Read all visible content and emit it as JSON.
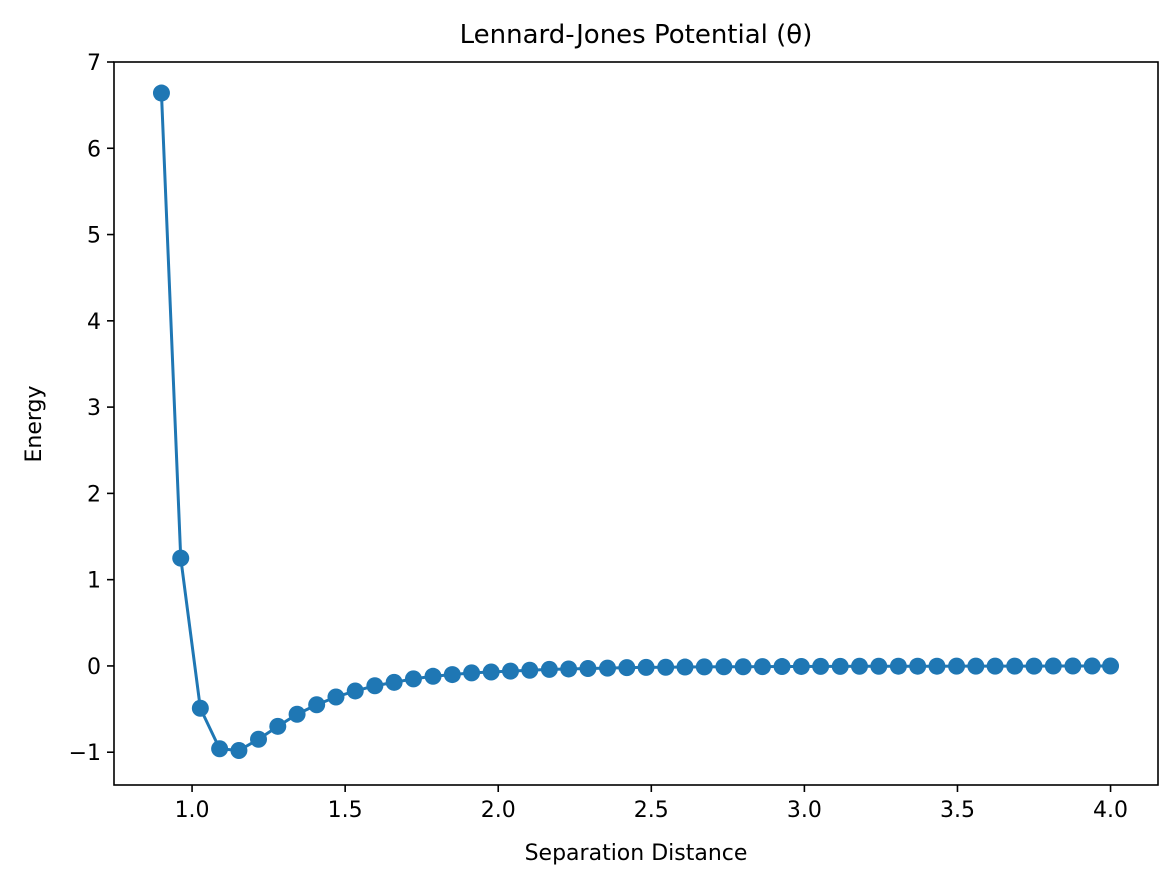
{
  "chart_data": {
    "type": "line",
    "title": "Lennard-Jones Potential (θ)",
    "xlabel": "Separation Distance",
    "ylabel": "Energy",
    "xlim": [
      0.745,
      4.155
    ],
    "ylim": [
      -1.38,
      7.0
    ],
    "xticks": [
      1.0,
      1.5,
      2.0,
      2.5,
      3.0,
      3.5,
      4.0
    ],
    "xtick_labels": [
      "1.0",
      "1.5",
      "2.0",
      "2.5",
      "3.0",
      "3.5",
      "4.0"
    ],
    "yticks": [
      -1,
      0,
      1,
      2,
      3,
      4,
      5,
      6,
      7
    ],
    "ytick_labels": [
      "−1",
      "0",
      "1",
      "2",
      "3",
      "4",
      "5",
      "6",
      "7"
    ],
    "grid": false,
    "markers": "circle",
    "series": [
      {
        "color": "#1f77b4",
        "x": [
          0.9,
          0.963,
          1.027,
          1.09,
          1.153,
          1.217,
          1.28,
          1.343,
          1.407,
          1.47,
          1.533,
          1.597,
          1.66,
          1.723,
          1.787,
          1.85,
          1.913,
          1.977,
          2.04,
          2.103,
          2.167,
          2.23,
          2.293,
          2.357,
          2.42,
          2.483,
          2.547,
          2.61,
          2.673,
          2.737,
          2.8,
          2.863,
          2.927,
          2.99,
          3.053,
          3.117,
          3.18,
          3.243,
          3.307,
          3.37,
          3.433,
          3.497,
          3.56,
          3.623,
          3.687,
          3.75,
          3.813,
          3.877,
          3.94,
          4.0
        ],
        "y": [
          6.64,
          1.25,
          -0.49,
          -0.96,
          -0.98,
          -0.85,
          -0.7,
          -0.56,
          -0.45,
          -0.36,
          -0.29,
          -0.23,
          -0.19,
          -0.15,
          -0.12,
          -0.1,
          -0.08,
          -0.07,
          -0.06,
          -0.05,
          -0.04,
          -0.035,
          -0.03,
          -0.025,
          -0.02,
          -0.017,
          -0.015,
          -0.013,
          -0.011,
          -0.01,
          -0.009,
          -0.008,
          -0.007,
          -0.006,
          -0.005,
          -0.005,
          -0.004,
          -0.004,
          -0.003,
          -0.003,
          -0.003,
          -0.002,
          -0.002,
          -0.002,
          -0.002,
          -0.002,
          -0.001,
          -0.001,
          -0.001,
          -0.001
        ]
      }
    ]
  }
}
